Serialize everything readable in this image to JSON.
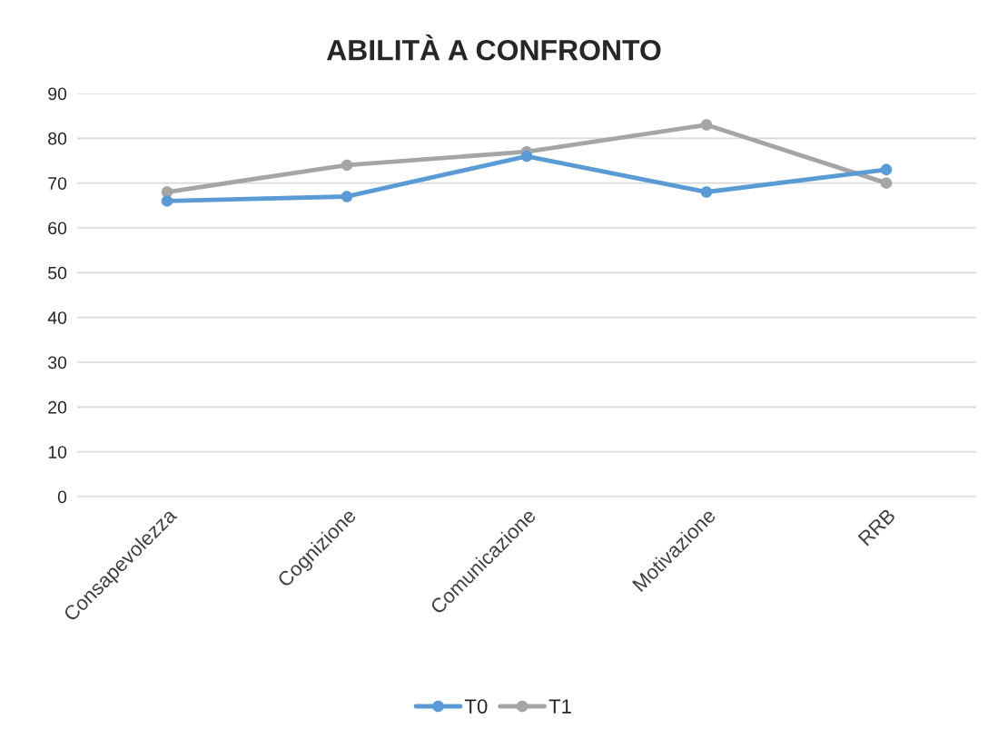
{
  "chart_data": {
    "type": "line",
    "title": "ABILITÀ A CONFRONTO",
    "categories": [
      "Consapevolezza",
      "Cognizione",
      "Comunicazione",
      "Motivazione",
      "RRB"
    ],
    "series": [
      {
        "name": "T0",
        "color": "#5b9bd5",
        "values": [
          66,
          67,
          76,
          68,
          73
        ]
      },
      {
        "name": "T1",
        "color": "#a5a5a5",
        "values": [
          68,
          74,
          77,
          83,
          70
        ]
      }
    ],
    "ylim": [
      0,
      90
    ],
    "yticks": [
      0,
      10,
      20,
      30,
      40,
      50,
      60,
      70,
      80,
      90
    ],
    "grid": "y",
    "legend": "bottom",
    "marker": "circle",
    "line_style": "solid"
  }
}
